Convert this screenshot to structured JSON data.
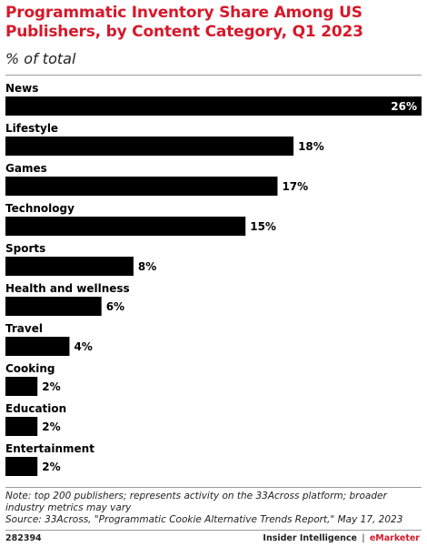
{
  "header": {
    "title": "Programmatic Inventory Share Among US Publishers, by Content Category, Q1 2023",
    "subtitle": "% of total"
  },
  "chart_data": {
    "type": "bar",
    "orientation": "horizontal",
    "categories": [
      "News",
      "Lifestyle",
      "Games",
      "Technology",
      "Sports",
      "Health and wellness",
      "Travel",
      "Cooking",
      "Education",
      "Entertainment"
    ],
    "values": [
      26,
      18,
      17,
      15,
      8,
      6,
      4,
      2,
      2,
      2
    ],
    "value_labels": [
      "26%",
      "18%",
      "17%",
      "15%",
      "8%",
      "6%",
      "4%",
      "2%",
      "2%",
      "2%"
    ],
    "xlim": [
      0,
      26
    ],
    "grid": false,
    "legend": "none",
    "bar_color": "#000000"
  },
  "footer": {
    "note": "Note: top 200 publishers; represents activity on the 33Across platform; broader industry metrics may vary",
    "source": "Source: 33Across, \"Programmatic Cookie Alternative Trends Report,\" May 17, 2023",
    "id": "282394",
    "publisher": "Insider Intelligence",
    "separator": "|",
    "brand": "eMarketer"
  },
  "colors": {
    "accent": "#d6192b",
    "bar": "#000000"
  }
}
